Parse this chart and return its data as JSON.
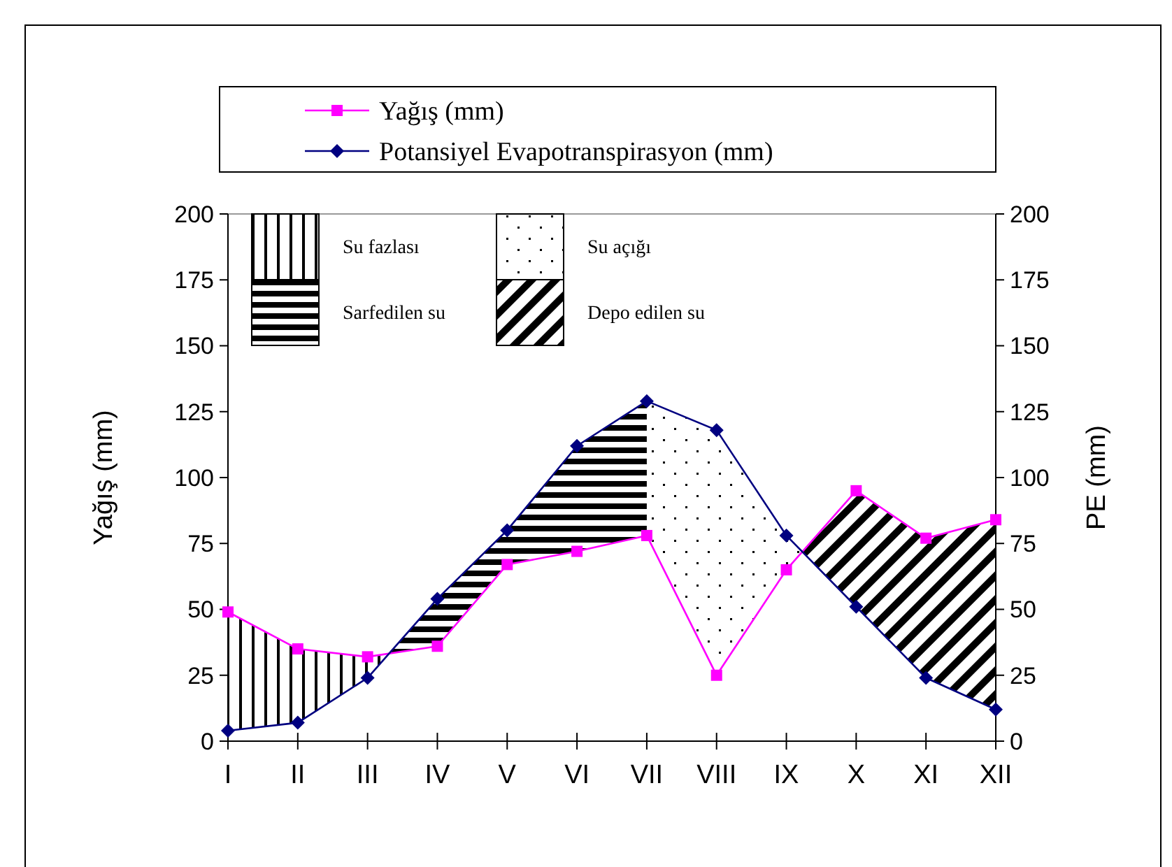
{
  "chart_data": {
    "type": "line",
    "ylabel": "Yağış (mm)",
    "y2label": "PE (mm)",
    "categories": [
      "I",
      "II",
      "III",
      "IV",
      "V",
      "VI",
      "VII",
      "VIII",
      "IX",
      "X",
      "XI",
      "XII"
    ],
    "ylim": [
      0,
      200
    ],
    "yticks": [
      0,
      25,
      50,
      75,
      100,
      125,
      150,
      175,
      200
    ],
    "y2lim": [
      0,
      200
    ],
    "y2ticks": [
      0,
      25,
      50,
      75,
      100,
      125,
      150,
      175,
      200
    ],
    "grid": false,
    "legend": "top",
    "series": [
      {
        "name": "Yağış (mm)",
        "color": "#ff00ff",
        "marker": "square",
        "values": [
          49,
          35,
          32,
          36,
          67,
          72,
          78,
          25,
          65,
          95,
          77,
          84
        ]
      },
      {
        "name": "Potansiyel Evapotranspirasyon (mm)",
        "color": "#000080",
        "marker": "diamond",
        "values": [
          4,
          7,
          24,
          54,
          80,
          112,
          129,
          118,
          78,
          51,
          24,
          12
        ]
      }
    ],
    "annotations": [
      "Su fazlası",
      "Sarfedilen su",
      "Su açığı",
      "Depo edilen su"
    ]
  }
}
